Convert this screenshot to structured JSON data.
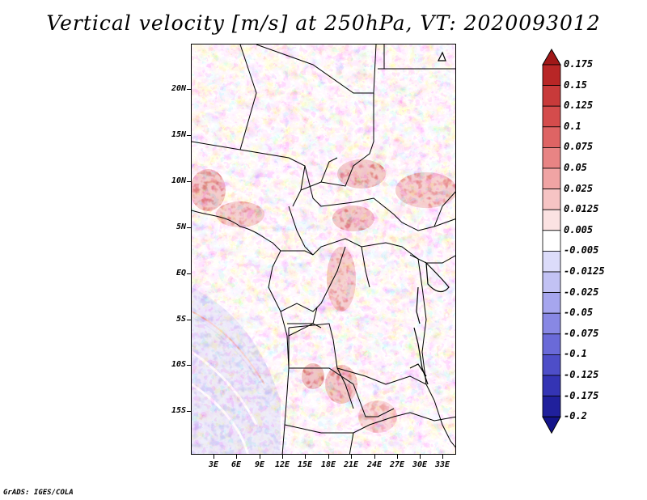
{
  "title": "Vertical velocity [m/s] at 250hPa, VT: 2020093012",
  "credit": "GrADS: IGES/COLA",
  "map": {
    "lat_labels": [
      "20N",
      "15N",
      "10N",
      "5N",
      "EQ",
      "5S",
      "10S",
      "15S"
    ],
    "lon_labels": [
      "3E",
      "6E",
      "9E",
      "12E",
      "15E",
      "18E",
      "21E",
      "24E",
      "27E",
      "30E",
      "33E"
    ]
  },
  "colorbar": {
    "labels": [
      "0.175",
      "0.15",
      "0.125",
      "0.1",
      "0.075",
      "0.05",
      "0.025",
      "0.0125",
      "0.005",
      "-0.005",
      "-0.0125",
      "-0.025",
      "-0.05",
      "-0.075",
      "-0.1",
      "-0.125",
      "-0.175",
      "-0.2"
    ],
    "colors": [
      "#a01818",
      "#b82626",
      "#c83a3a",
      "#d44c4c",
      "#de6464",
      "#e88484",
      "#f0a4a4",
      "#f6c4c4",
      "#fbe2e2",
      "#ffffff",
      "#dcdcfa",
      "#c2c2f4",
      "#a6a6ee",
      "#8888e4",
      "#6a6ad8",
      "#4e4ec8",
      "#3434b4",
      "#20209c",
      "#14148a"
    ]
  }
}
